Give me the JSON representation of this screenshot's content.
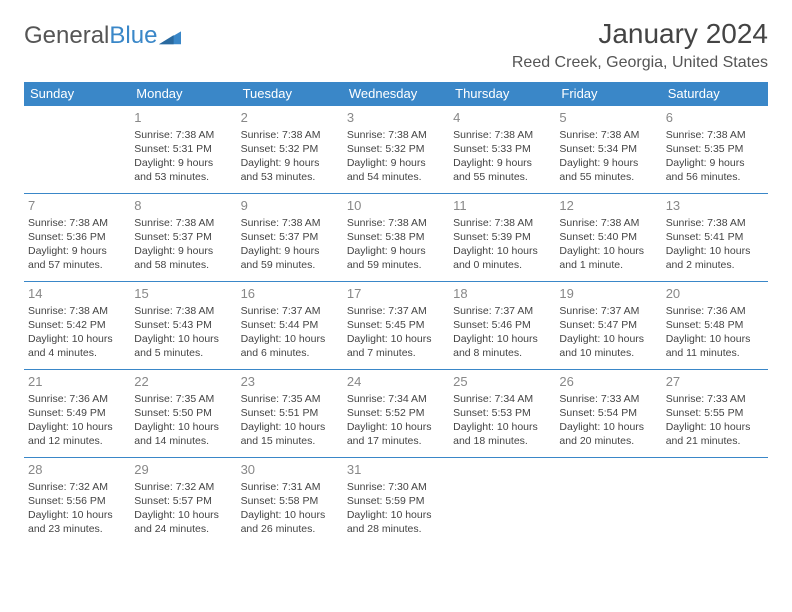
{
  "logo": {
    "word1": "General",
    "word2": "Blue"
  },
  "title": "January 2024",
  "location": "Reed Creek, Georgia, United States",
  "colors": {
    "accent": "#3a87c8",
    "textMuted": "#888888",
    "text": "#444444"
  },
  "weekdays": [
    "Sunday",
    "Monday",
    "Tuesday",
    "Wednesday",
    "Thursday",
    "Friday",
    "Saturday"
  ],
  "startOffset": 1,
  "days": [
    {
      "n": "1",
      "sr": "7:38 AM",
      "ss": "5:31 PM",
      "dl": "9 hours and 53 minutes."
    },
    {
      "n": "2",
      "sr": "7:38 AM",
      "ss": "5:32 PM",
      "dl": "9 hours and 53 minutes."
    },
    {
      "n": "3",
      "sr": "7:38 AM",
      "ss": "5:32 PM",
      "dl": "9 hours and 54 minutes."
    },
    {
      "n": "4",
      "sr": "7:38 AM",
      "ss": "5:33 PM",
      "dl": "9 hours and 55 minutes."
    },
    {
      "n": "5",
      "sr": "7:38 AM",
      "ss": "5:34 PM",
      "dl": "9 hours and 55 minutes."
    },
    {
      "n": "6",
      "sr": "7:38 AM",
      "ss": "5:35 PM",
      "dl": "9 hours and 56 minutes."
    },
    {
      "n": "7",
      "sr": "7:38 AM",
      "ss": "5:36 PM",
      "dl": "9 hours and 57 minutes."
    },
    {
      "n": "8",
      "sr": "7:38 AM",
      "ss": "5:37 PM",
      "dl": "9 hours and 58 minutes."
    },
    {
      "n": "9",
      "sr": "7:38 AM",
      "ss": "5:37 PM",
      "dl": "9 hours and 59 minutes."
    },
    {
      "n": "10",
      "sr": "7:38 AM",
      "ss": "5:38 PM",
      "dl": "9 hours and 59 minutes."
    },
    {
      "n": "11",
      "sr": "7:38 AM",
      "ss": "5:39 PM",
      "dl": "10 hours and 0 minutes."
    },
    {
      "n": "12",
      "sr": "7:38 AM",
      "ss": "5:40 PM",
      "dl": "10 hours and 1 minute."
    },
    {
      "n": "13",
      "sr": "7:38 AM",
      "ss": "5:41 PM",
      "dl": "10 hours and 2 minutes."
    },
    {
      "n": "14",
      "sr": "7:38 AM",
      "ss": "5:42 PM",
      "dl": "10 hours and 4 minutes."
    },
    {
      "n": "15",
      "sr": "7:38 AM",
      "ss": "5:43 PM",
      "dl": "10 hours and 5 minutes."
    },
    {
      "n": "16",
      "sr": "7:37 AM",
      "ss": "5:44 PM",
      "dl": "10 hours and 6 minutes."
    },
    {
      "n": "17",
      "sr": "7:37 AM",
      "ss": "5:45 PM",
      "dl": "10 hours and 7 minutes."
    },
    {
      "n": "18",
      "sr": "7:37 AM",
      "ss": "5:46 PM",
      "dl": "10 hours and 8 minutes."
    },
    {
      "n": "19",
      "sr": "7:37 AM",
      "ss": "5:47 PM",
      "dl": "10 hours and 10 minutes."
    },
    {
      "n": "20",
      "sr": "7:36 AM",
      "ss": "5:48 PM",
      "dl": "10 hours and 11 minutes."
    },
    {
      "n": "21",
      "sr": "7:36 AM",
      "ss": "5:49 PM",
      "dl": "10 hours and 12 minutes."
    },
    {
      "n": "22",
      "sr": "7:35 AM",
      "ss": "5:50 PM",
      "dl": "10 hours and 14 minutes."
    },
    {
      "n": "23",
      "sr": "7:35 AM",
      "ss": "5:51 PM",
      "dl": "10 hours and 15 minutes."
    },
    {
      "n": "24",
      "sr": "7:34 AM",
      "ss": "5:52 PM",
      "dl": "10 hours and 17 minutes."
    },
    {
      "n": "25",
      "sr": "7:34 AM",
      "ss": "5:53 PM",
      "dl": "10 hours and 18 minutes."
    },
    {
      "n": "26",
      "sr": "7:33 AM",
      "ss": "5:54 PM",
      "dl": "10 hours and 20 minutes."
    },
    {
      "n": "27",
      "sr": "7:33 AM",
      "ss": "5:55 PM",
      "dl": "10 hours and 21 minutes."
    },
    {
      "n": "28",
      "sr": "7:32 AM",
      "ss": "5:56 PM",
      "dl": "10 hours and 23 minutes."
    },
    {
      "n": "29",
      "sr": "7:32 AM",
      "ss": "5:57 PM",
      "dl": "10 hours and 24 minutes."
    },
    {
      "n": "30",
      "sr": "7:31 AM",
      "ss": "5:58 PM",
      "dl": "10 hours and 26 minutes."
    },
    {
      "n": "31",
      "sr": "7:30 AM",
      "ss": "5:59 PM",
      "dl": "10 hours and 28 minutes."
    }
  ],
  "labels": {
    "sunrise": "Sunrise:",
    "sunset": "Sunset:",
    "daylight": "Daylight:"
  }
}
